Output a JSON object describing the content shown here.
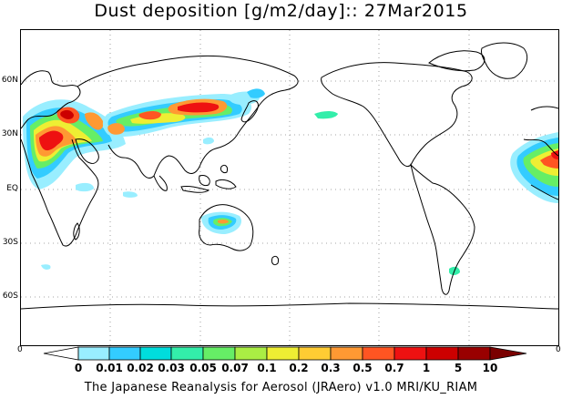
{
  "title": "Dust deposition [g/m2/day]:: 27Mar2015",
  "map": {
    "lat_labels": [
      "60N",
      "30N",
      "EQ",
      "30S",
      "60S"
    ],
    "corner_left": "0",
    "corner_right": "0"
  },
  "colorbar": {
    "labels": [
      "0",
      "0.01",
      "0.02",
      "0.03",
      "0.05",
      "0.07",
      "0.1",
      "0.2",
      "0.3",
      "0.5",
      "0.7",
      "1",
      "5",
      "10"
    ],
    "colors": [
      "#ffffff",
      "#99eeff",
      "#33ccff",
      "#00dddd",
      "#33eeaa",
      "#66ee66",
      "#aaee44",
      "#eeee33",
      "#ffcc33",
      "#ff9933",
      "#ff5522",
      "#ee1111",
      "#cc0000",
      "#990000",
      "#7a0000"
    ]
  },
  "credit": "The Japanese Reanalysis for Aerosol (JRAero) v1.0 MRI/KU_RIAM"
}
